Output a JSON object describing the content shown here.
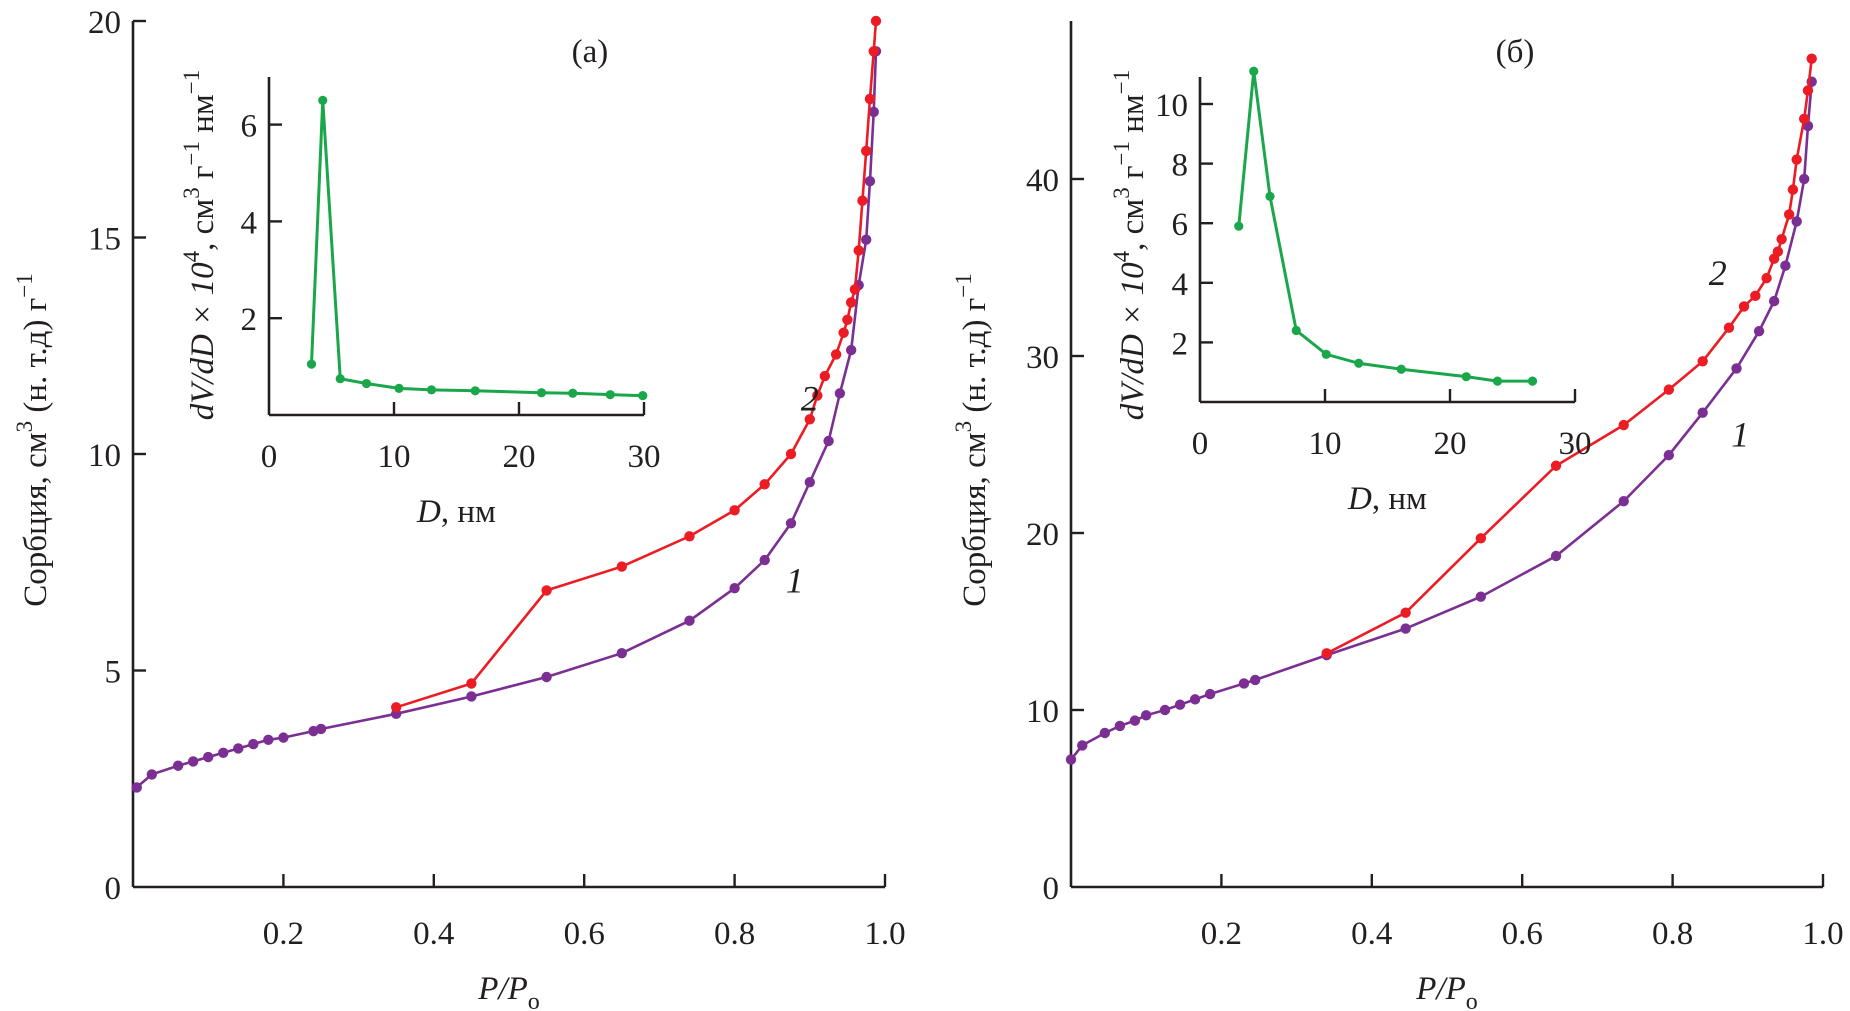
{
  "colors": {
    "series1": "#7b2f93",
    "series2": "#ec1c24",
    "inset": "#1aa64b",
    "axis": "#231f20"
  },
  "chart_data": [
    {
      "id": "a",
      "type": "line",
      "panel_label": "(a)",
      "xlabel": "P/P",
      "xlabel_sub": "o",
      "ylabel": "Сорбция, см",
      "ylabel_sup": "3",
      "ylabel_tail": " (н. т.д) г",
      "ylabel_tail_sup": "−1",
      "xlim": [
        0,
        1.0
      ],
      "ylim": [
        0,
        20
      ],
      "xticks": [
        0.2,
        0.4,
        0.6,
        0.8,
        1.0
      ],
      "xtick_labels": [
        "0.2",
        "0.4",
        "0.6",
        "0.8",
        "1.0"
      ],
      "yticks": [
        0,
        5,
        10,
        15,
        20
      ],
      "ytick_labels": [
        "0",
        "5",
        "10",
        "15",
        "20"
      ],
      "grid": false,
      "series": [
        {
          "name": "1",
          "label_position": [
            0.88,
            6.8
          ],
          "x": [
            0.005,
            0.025,
            0.06,
            0.08,
            0.1,
            0.12,
            0.14,
            0.16,
            0.18,
            0.2,
            0.24,
            0.25,
            0.35,
            0.45,
            0.55,
            0.65,
            0.74,
            0.8,
            0.84,
            0.875,
            0.9,
            0.925,
            0.94,
            0.955,
            0.965,
            0.975,
            0.98,
            0.985,
            0.988
          ],
          "y": [
            2.3,
            2.6,
            2.8,
            2.9,
            3.0,
            3.1,
            3.2,
            3.3,
            3.4,
            3.45,
            3.6,
            3.65,
            4.0,
            4.4,
            4.85,
            5.4,
            6.15,
            6.9,
            7.55,
            8.4,
            9.35,
            10.3,
            11.4,
            12.4,
            13.9,
            14.95,
            16.3,
            17.9,
            19.3
          ]
        },
        {
          "name": "2",
          "label_position": [
            0.9,
            11.0
          ],
          "x": [
            0.35,
            0.45,
            0.55,
            0.65,
            0.74,
            0.8,
            0.84,
            0.875,
            0.9,
            0.91,
            0.92,
            0.935,
            0.945,
            0.95,
            0.955,
            0.96,
            0.965,
            0.97,
            0.975,
            0.98,
            0.985,
            0.988
          ],
          "y": [
            4.15,
            4.7,
            6.85,
            7.4,
            8.1,
            8.7,
            9.3,
            10.0,
            10.8,
            11.35,
            11.8,
            12.3,
            12.8,
            13.1,
            13.5,
            13.8,
            14.7,
            15.85,
            17.0,
            18.2,
            19.3,
            20.0
          ]
        }
      ],
      "inset": {
        "type": "line",
        "xlabel": "D",
        "xlabel_tail": ", нм",
        "ylabel": "dV/dD × 10",
        "ylabel_sup": "4",
        "ylabel_tail": ", см",
        "ylabel_tail_sup": "3",
        "ylabel_tail2": " г",
        "ylabel_tail2_sup": "−1",
        "ylabel_tail3": " нм",
        "ylabel_tail3_sup": "−1",
        "xlim": [
          0,
          30
        ],
        "ylim": [
          0,
          7
        ],
        "xticks": [
          0,
          10,
          20,
          30
        ],
        "xtick_labels": [
          "0",
          "10",
          "20",
          "30"
        ],
        "yticks": [
          2,
          4,
          6
        ],
        "ytick_labels": [
          "2",
          "4",
          "6"
        ],
        "x": [
          3.4,
          4.3,
          5.7,
          7.8,
          10.4,
          13.0,
          16.5,
          21.8,
          24.3,
          27.3,
          29.9
        ],
        "y": [
          1.05,
          6.5,
          0.75,
          0.65,
          0.55,
          0.52,
          0.5,
          0.46,
          0.45,
          0.42,
          0.4
        ]
      }
    },
    {
      "id": "b",
      "type": "line",
      "panel_label": "(б)",
      "xlabel": "P/P",
      "xlabel_sub": "o",
      "ylabel": "Сорбция, см",
      "ylabel_sup": "3",
      "ylabel_tail": " (н. т.д) г",
      "ylabel_tail_sup": "−1",
      "xlim": [
        0,
        1.0
      ],
      "ylim": [
        0,
        49
      ],
      "xticks": [
        0.2,
        0.4,
        0.6,
        0.8,
        1.0
      ],
      "xtick_labels": [
        "0.2",
        "0.4",
        "0.6",
        "0.8",
        "1.0"
      ],
      "yticks": [
        0,
        10,
        20,
        30,
        40
      ],
      "ytick_labels": [
        "0",
        "10",
        "20",
        "30",
        "40"
      ],
      "grid": false,
      "series": [
        {
          "name": "1",
          "label_position": [
            0.89,
            24.9
          ],
          "x": [
            0.0,
            0.015,
            0.045,
            0.065,
            0.085,
            0.1,
            0.125,
            0.145,
            0.165,
            0.185,
            0.23,
            0.245,
            0.34,
            0.445,
            0.545,
            0.645,
            0.735,
            0.795,
            0.84,
            0.885,
            0.915,
            0.935,
            0.95,
            0.965,
            0.975,
            0.98,
            0.985
          ],
          "y": [
            7.2,
            8.0,
            8.7,
            9.1,
            9.4,
            9.7,
            10.0,
            10.3,
            10.6,
            10.9,
            11.5,
            11.7,
            13.1,
            14.6,
            16.4,
            18.7,
            21.8,
            24.4,
            26.8,
            29.3,
            31.4,
            33.1,
            35.1,
            37.6,
            40.0,
            43.0,
            45.5
          ]
        },
        {
          "name": "2",
          "label_position": [
            0.86,
            34.0
          ],
          "x": [
            0.34,
            0.445,
            0.545,
            0.645,
            0.735,
            0.795,
            0.84,
            0.875,
            0.895,
            0.91,
            0.925,
            0.935,
            0.94,
            0.945,
            0.955,
            0.96,
            0.965,
            0.975,
            0.98,
            0.985
          ],
          "y": [
            13.2,
            15.5,
            19.7,
            23.8,
            26.1,
            28.1,
            29.7,
            31.6,
            32.8,
            33.4,
            34.4,
            35.5,
            35.9,
            36.6,
            38.0,
            39.4,
            41.1,
            43.4,
            45.0,
            46.8
          ]
        }
      ],
      "inset": {
        "type": "line",
        "xlabel": "D",
        "xlabel_tail": ", нм",
        "ylabel": "dV/dD × 10",
        "ylabel_sup": "4",
        "ylabel_tail": ", см",
        "ylabel_tail_sup": "3",
        "ylabel_tail2": " г",
        "ylabel_tail2_sup": "−1",
        "ylabel_tail3": " нм",
        "ylabel_tail3_sup": "−1",
        "xlim": [
          0,
          30
        ],
        "ylim": [
          0,
          11.2
        ],
        "xticks": [
          0,
          10,
          20,
          30
        ],
        "xtick_labels": [
          "0",
          "10",
          "20",
          "30"
        ],
        "yticks": [
          2,
          4,
          6,
          8,
          10
        ],
        "ytick_labels": [
          "2",
          "4",
          "6",
          "8",
          "10"
        ],
        "x": [
          3.1,
          4.3,
          5.6,
          7.7,
          10.1,
          12.7,
          16.1,
          21.3,
          23.8,
          26.6
        ],
        "y": [
          5.9,
          11.1,
          6.9,
          2.4,
          1.6,
          1.3,
          1.1,
          0.85,
          0.7,
          0.7
        ]
      }
    }
  ]
}
